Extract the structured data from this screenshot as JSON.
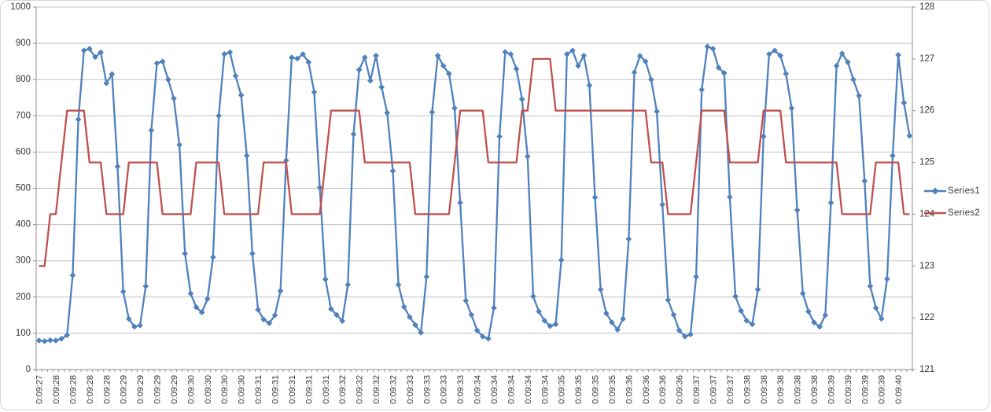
{
  "colors": {
    "series1": "#4F81BD",
    "series2": "#C0504D",
    "gridline": "#C3C3C3",
    "axis_line": "#8E8E8E",
    "tick": "#8E8E8E",
    "text": "#363636",
    "frame_border": "#D5D5D5",
    "background": "#FFFFFF"
  },
  "legend": {
    "position": "right",
    "items": [
      {
        "label": "Series1",
        "series": 0,
        "marker": "diamond"
      },
      {
        "label": "Series2",
        "series": 1,
        "marker": "none"
      }
    ]
  },
  "chart_data": {
    "type": "line",
    "grid": true,
    "legend_position": "right",
    "points_per_label": 3,
    "x_labels": [
      "0:09:27",
      "0:09:28",
      "0:09:28",
      "0:09:28",
      "0:09:28",
      "0:09:29",
      "0:09:29",
      "0:09:29",
      "0:09:29",
      "0:09:30",
      "0:09:30",
      "0:09:30",
      "0:09:30",
      "0:09:31",
      "0:09:31",
      "0:09:31",
      "0:09:31",
      "0:09:31",
      "0:09:32",
      "0:09:32",
      "0:09:32",
      "0:09:32",
      "0:09:33",
      "0:09:33",
      "0:09:33",
      "0:09:33",
      "0:09:34",
      "0:09:34",
      "0:09:34",
      "0:09:34",
      "0:09:34",
      "0:09:35",
      "0:09:35",
      "0:09:35",
      "0:09:35",
      "0:09:36",
      "0:09:36",
      "0:09:36",
      "0:09:36",
      "0:09:37",
      "0:09:37",
      "0:09:37",
      "0:09:38",
      "0:09:38",
      "0:09:38",
      "0:09:38",
      "0:09:38",
      "0:09:39",
      "0:09:39",
      "0:09:39",
      "0:09:39",
      "0:09:40"
    ],
    "left_axis": {
      "min": 0,
      "max": 1000,
      "step": 100,
      "tick_labels": [
        "0",
        "100",
        "200",
        "300",
        "400",
        "500",
        "600",
        "700",
        "800",
        "900",
        "1000"
      ]
    },
    "right_axis": {
      "min": 121,
      "max": 128,
      "step": 1,
      "tick_labels": [
        "121",
        "122",
        "123",
        "124",
        "125",
        "126",
        "127",
        "128"
      ]
    },
    "series": [
      {
        "name": "Series1",
        "axis": "left",
        "marker": "diamond",
        "color": "#4F81BD",
        "values": [
          80,
          78,
          81,
          80,
          85,
          95,
          260,
          690,
          880,
          885,
          862,
          875,
          790,
          815,
          560,
          215,
          140,
          118,
          122,
          230,
          660,
          845,
          850,
          800,
          748,
          620,
          320,
          210,
          172,
          158,
          195,
          310,
          700,
          870,
          875,
          810,
          757,
          590,
          320,
          165,
          138,
          128,
          150,
          217,
          577,
          861,
          858,
          870,
          848,
          765,
          502,
          249,
          167,
          151,
          134,
          234,
          649,
          827,
          861,
          797,
          866,
          779,
          708,
          548,
          234,
          173,
          145,
          123,
          102,
          256,
          710,
          866,
          838,
          816,
          721,
          460,
          190,
          151,
          108,
          91,
          85,
          170,
          643,
          876,
          870,
          829,
          746,
          588,
          202,
          160,
          135,
          120,
          125,
          302,
          870,
          880,
          838,
          866,
          784,
          475,
          221,
          155,
          130,
          110,
          140,
          360,
          820,
          865,
          850,
          800,
          712,
          455,
          192,
          151,
          108,
          91,
          97,
          256,
          772,
          891,
          885,
          833,
          818,
          476,
          202,
          162,
          135,
          125,
          221,
          643,
          870,
          880,
          866,
          816,
          721,
          440,
          210,
          160,
          130,
          118,
          150,
          460,
          838,
          872,
          848,
          800,
          755,
          520,
          230,
          170,
          140,
          250,
          590,
          868,
          736,
          645
        ]
      },
      {
        "name": "Series2",
        "axis": "right",
        "marker": "none",
        "color": "#C0504D",
        "values": [
          123,
          123,
          124,
          124,
          125,
          126,
          126,
          126,
          126,
          125,
          125,
          125,
          124,
          124,
          124,
          124,
          125,
          125,
          125,
          125,
          125,
          125,
          124,
          124,
          124,
          124,
          124,
          124,
          125,
          125,
          125,
          125,
          125,
          124,
          124,
          124,
          124,
          124,
          124,
          124,
          125,
          125,
          125,
          125,
          125,
          124,
          124,
          124,
          124,
          124,
          124,
          125,
          126,
          126,
          126,
          126,
          126,
          126,
          125,
          125,
          125,
          125,
          125,
          125,
          125,
          125,
          125,
          124,
          124,
          124,
          124,
          124,
          124,
          124,
          125,
          126,
          126,
          126,
          126,
          126,
          125,
          125,
          125,
          125,
          125,
          125,
          126,
          126,
          127,
          127,
          127,
          127,
          126,
          126,
          126,
          126,
          126,
          126,
          126,
          126,
          126,
          126,
          126,
          126,
          126,
          126,
          126,
          126,
          126,
          125,
          125,
          125,
          124,
          124,
          124,
          124,
          124,
          125,
          126,
          126,
          126,
          126,
          126,
          125,
          125,
          125,
          125,
          125,
          125,
          126,
          126,
          126,
          126,
          125,
          125,
          125,
          125,
          125,
          125,
          125,
          125,
          125,
          125,
          124,
          124,
          124,
          124,
          124,
          124,
          125,
          125,
          125,
          125,
          125,
          124,
          124
        ]
      }
    ]
  }
}
